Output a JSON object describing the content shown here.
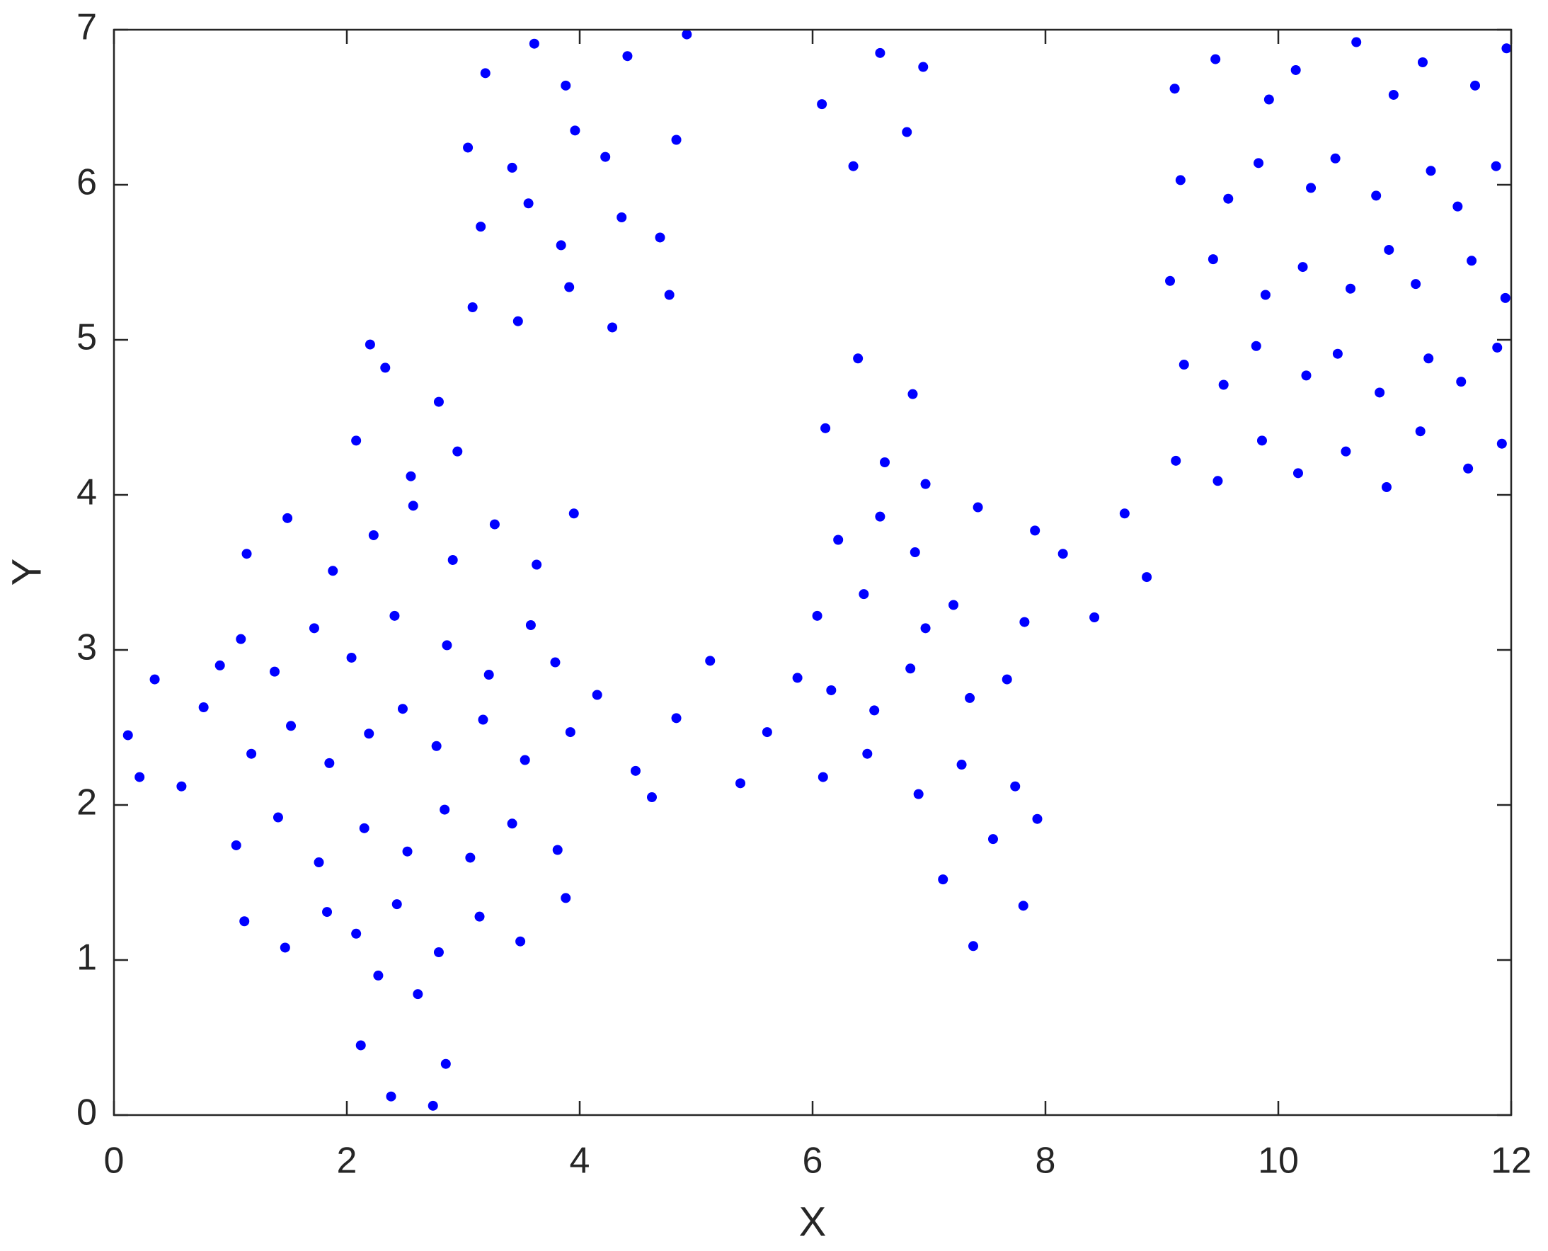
{
  "chart_data": {
    "type": "scatter",
    "x_label": "X",
    "y_label": "Y",
    "color": "#0000ff",
    "xlim": [
      0,
      12
    ],
    "ylim": [
      0,
      7
    ],
    "xticks": [
      0,
      2,
      4,
      6,
      8,
      10,
      12
    ],
    "yticks": [
      0,
      1,
      2,
      3,
      4,
      5,
      6,
      7
    ],
    "x": [
      0.12,
      0.35,
      0.58,
      0.77,
      0.22,
      0.91,
      1.12,
      1.47,
      1.83,
      2.08,
      2.43,
      2.79,
      3.14,
      3.49,
      3.88,
      1.05,
      1.41,
      1.76,
      2.15,
      2.52,
      2.84,
      3.06,
      3.42,
      3.81,
      1.18,
      1.52,
      1.85,
      2.19,
      2.48,
      2.77,
      3.17,
      3.53,
      3.92,
      1.09,
      1.38,
      1.72,
      2.04,
      2.41,
      2.86,
      3.22,
      3.58,
      3.79,
      1.14,
      1.49,
      1.88,
      2.23,
      2.57,
      2.91,
      3.27,
      3.63,
      3.95,
      2.12,
      2.38,
      2.61,
      2.85,
      2.27,
      2.74,
      2.08,
      2.33,
      2.55,
      2.79,
      2.95,
      2.2,
      3.08,
      3.47,
      3.91,
      4.28,
      4.77,
      3.15,
      3.56,
      3.84,
      4.36,
      4.69,
      3.04,
      3.42,
      3.96,
      4.22,
      4.83,
      3.19,
      3.61,
      3.88,
      4.41,
      4.92,
      4.15,
      4.48,
      4.83,
      5.12,
      5.38,
      5.61,
      5.87,
      4.62,
      6.08,
      6.35,
      6.58,
      6.81,
      6.95,
      6.11,
      6.39,
      6.62,
      6.86,
      6.97,
      6.09,
      6.47,
      6.91,
      7.28,
      7.74,
      6.16,
      6.53,
      6.84,
      7.35,
      7.67,
      6.04,
      6.44,
      6.97,
      7.21,
      7.82,
      6.22,
      6.58,
      6.88,
      7.42,
      7.91,
      7.12,
      7.38,
      7.55,
      7.81,
      7.93,
      8.15,
      8.42,
      8.68,
      8.87,
      9.12,
      9.48,
      9.86,
      10.17,
      10.58,
      10.93,
      11.22,
      11.63,
      11.92,
      9.19,
      9.53,
      9.81,
      10.24,
      10.51,
      10.87,
      11.29,
      11.57,
      11.88,
      9.07,
      9.44,
      9.89,
      10.21,
      10.62,
      10.95,
      11.18,
      11.66,
      11.95,
      9.16,
      9.57,
      9.83,
      10.28,
      10.49,
      10.84,
      11.31,
      11.54,
      11.87,
      9.11,
      9.46,
      9.92,
      10.15,
      10.67,
      10.99,
      11.24,
      11.69,
      11.96
    ],
    "values": [
      2.45,
      2.81,
      2.12,
      2.63,
      2.18,
      2.9,
      1.25,
      1.08,
      1.31,
      1.17,
      1.36,
      1.05,
      1.28,
      1.12,
      1.4,
      1.74,
      1.92,
      1.63,
      1.85,
      1.7,
      1.97,
      1.66,
      1.88,
      1.71,
      2.33,
      2.51,
      2.27,
      2.46,
      2.62,
      2.38,
      2.55,
      2.29,
      2.47,
      3.07,
      2.86,
      3.14,
      2.95,
      3.22,
      3.03,
      2.84,
      3.16,
      2.92,
      3.62,
      3.85,
      3.51,
      3.74,
      3.93,
      3.58,
      3.81,
      3.55,
      3.88,
      0.45,
      0.12,
      0.78,
      0.33,
      0.9,
      0.06,
      4.35,
      4.82,
      4.12,
      4.6,
      4.28,
      4.97,
      5.21,
      5.12,
      5.34,
      5.08,
      5.29,
      5.73,
      5.88,
      5.61,
      5.79,
      5.66,
      6.24,
      6.11,
      6.35,
      6.18,
      6.29,
      6.72,
      6.91,
      6.64,
      6.83,
      6.97,
      2.71,
      2.22,
      2.56,
      2.93,
      2.14,
      2.47,
      2.82,
      2.05,
      6.52,
      6.12,
      6.85,
      6.34,
      6.76,
      4.43,
      4.88,
      4.21,
      4.65,
      4.07,
      2.18,
      2.33,
      2.07,
      2.26,
      2.12,
      2.74,
      2.61,
      2.88,
      2.69,
      2.81,
      3.22,
      3.36,
      3.14,
      3.29,
      3.18,
      3.71,
      3.86,
      3.63,
      3.92,
      3.77,
      1.52,
      1.09,
      1.78,
      1.35,
      1.91,
      3.62,
      3.21,
      3.88,
      3.47,
      4.22,
      4.09,
      4.35,
      4.14,
      4.28,
      4.05,
      4.41,
      4.17,
      4.33,
      4.84,
      4.71,
      4.96,
      4.77,
      4.91,
      4.66,
      4.88,
      4.73,
      4.95,
      5.38,
      5.52,
      5.29,
      5.47,
      5.33,
      5.58,
      5.36,
      5.51,
      5.27,
      6.03,
      5.91,
      6.14,
      5.98,
      6.17,
      5.93,
      6.09,
      5.86,
      6.12,
      6.62,
      6.81,
      6.55,
      6.74,
      6.92,
      6.58,
      6.79,
      6.64,
      6.88
    ]
  }
}
